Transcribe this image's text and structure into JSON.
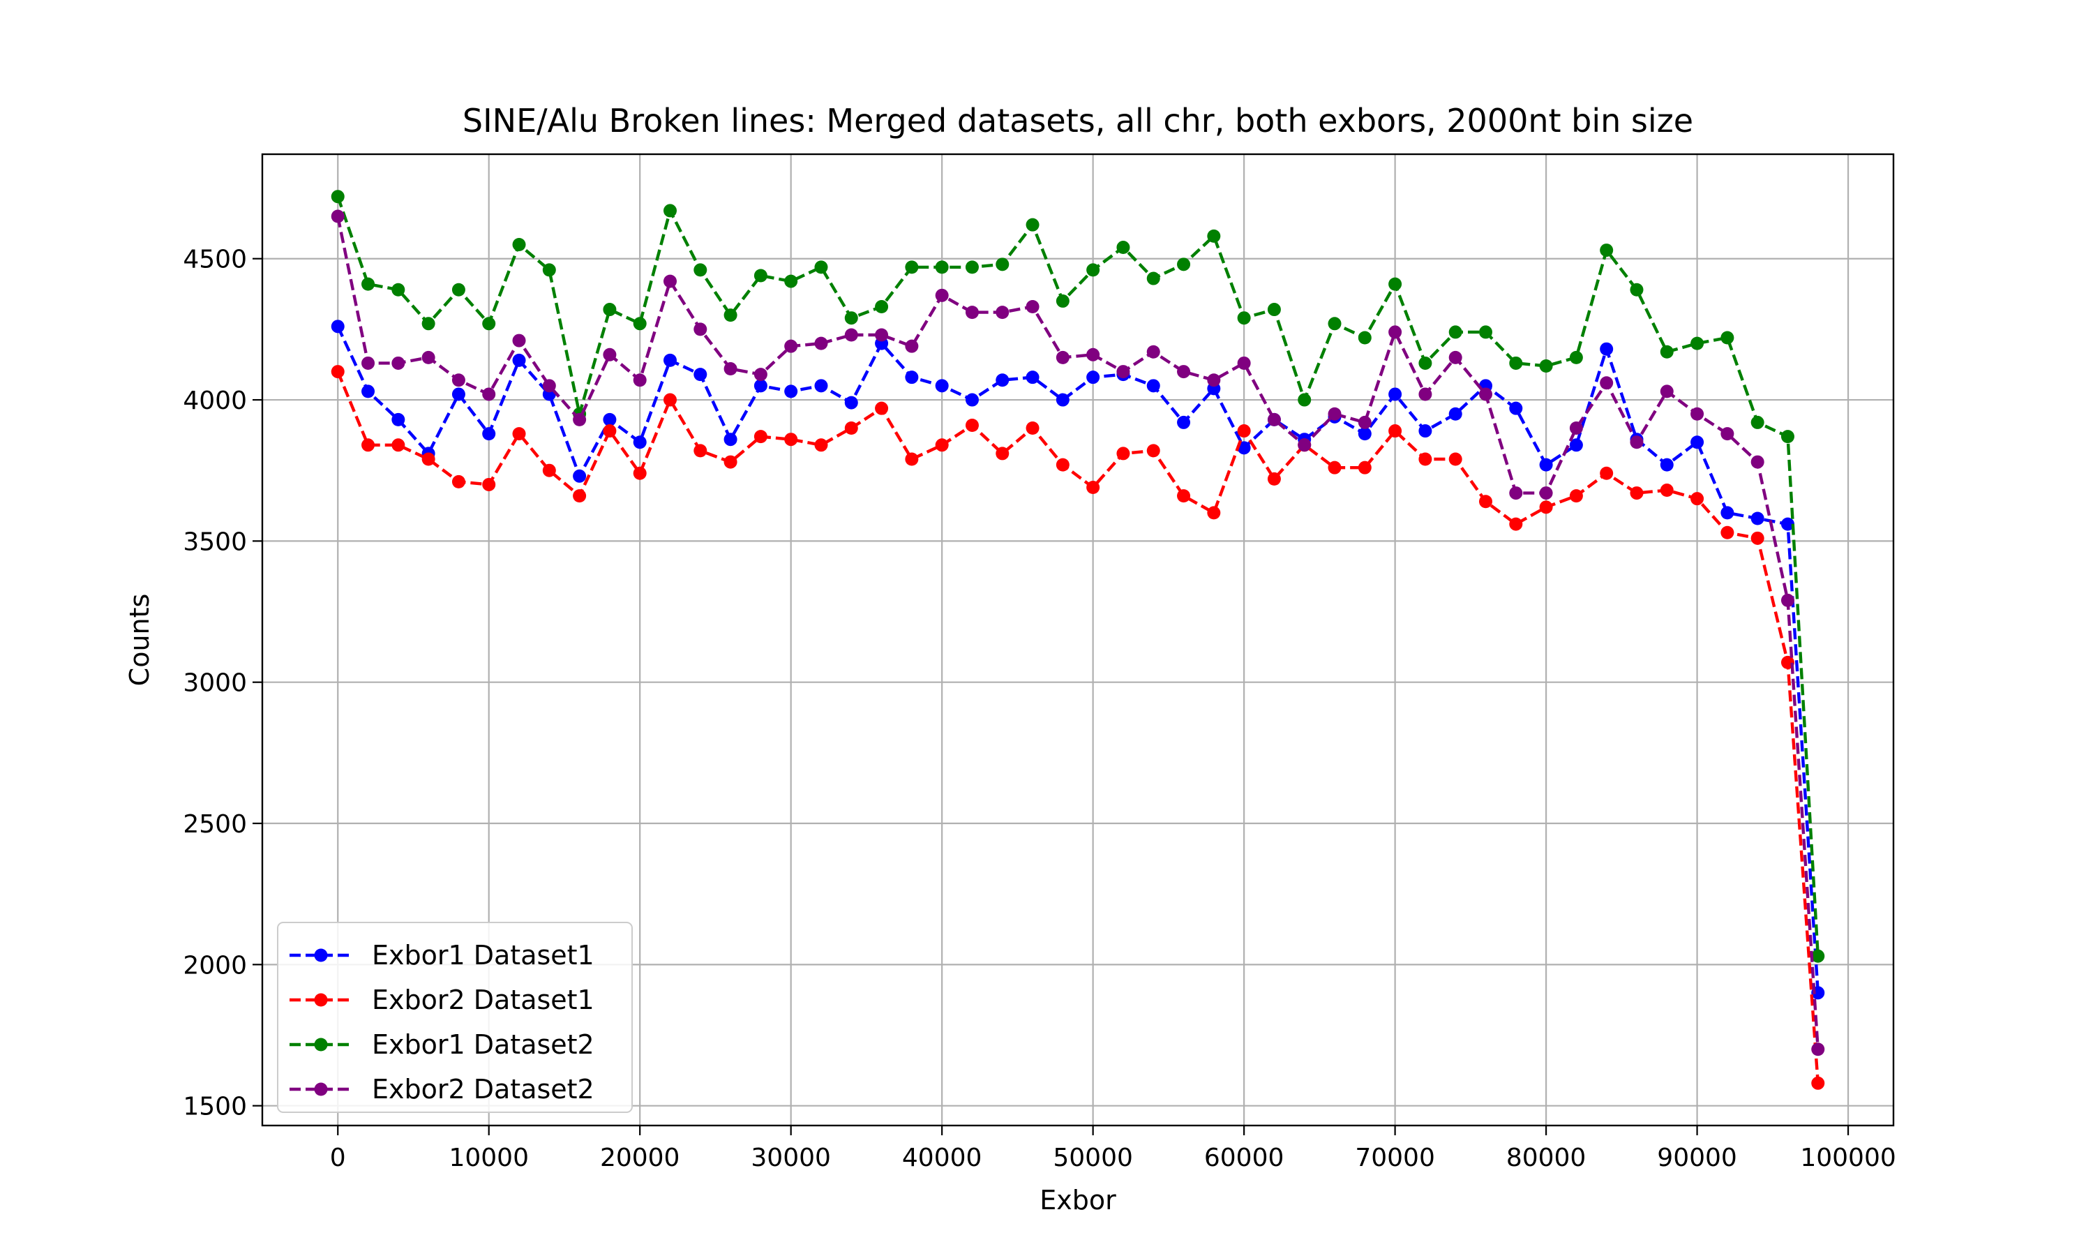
{
  "chart_data": {
    "type": "line",
    "title": "SINE/Alu Broken lines: Merged datasets, all chr, both exbors, 2000nt bin size",
    "xlabel": "Exbor",
    "ylabel": "Counts",
    "xlim": [
      -5000,
      103000
    ],
    "ylim": [
      1430,
      4870
    ],
    "x_ticks": [
      0,
      10000,
      20000,
      30000,
      40000,
      50000,
      60000,
      70000,
      80000,
      90000,
      100000
    ],
    "y_ticks": [
      1500,
      2000,
      2500,
      3000,
      3500,
      4000,
      4500
    ],
    "grid": true,
    "legend_position": "lower-left",
    "line_style": "dashed",
    "marker": "circle",
    "x": [
      0,
      2000,
      4000,
      6000,
      8000,
      10000,
      12000,
      14000,
      16000,
      18000,
      20000,
      22000,
      24000,
      26000,
      28000,
      30000,
      32000,
      34000,
      36000,
      38000,
      40000,
      42000,
      44000,
      46000,
      48000,
      50000,
      52000,
      54000,
      56000,
      58000,
      60000,
      62000,
      64000,
      66000,
      68000,
      70000,
      72000,
      74000,
      76000,
      78000,
      80000,
      82000,
      84000,
      86000,
      88000,
      90000,
      92000,
      94000,
      96000,
      98000
    ],
    "series": [
      {
        "name": "Exbor1 Dataset1",
        "color": "#0000ff",
        "values": [
          4260,
          4030,
          3930,
          3810,
          4020,
          3880,
          4140,
          4020,
          3730,
          3930,
          3850,
          4140,
          4090,
          3860,
          4050,
          4030,
          4050,
          3990,
          4200,
          4080,
          4050,
          4000,
          4070,
          4080,
          4000,
          4080,
          4090,
          4050,
          3920,
          4040,
          3830,
          3930,
          3860,
          3940,
          3880,
          4020,
          3890,
          3950,
          4050,
          3970,
          3770,
          3840,
          4180,
          3860,
          3770,
          3850,
          3600,
          3580,
          3560,
          1900
        ]
      },
      {
        "name": "Exbor2 Dataset1",
        "color": "#ff0000",
        "values": [
          4100,
          3840,
          3840,
          3790,
          3710,
          3700,
          3880,
          3750,
          3660,
          3890,
          3740,
          4000,
          3820,
          3780,
          3870,
          3860,
          3840,
          3900,
          3970,
          3790,
          3840,
          3910,
          3810,
          3900,
          3770,
          3690,
          3810,
          3820,
          3660,
          3600,
          3890,
          3720,
          3840,
          3760,
          3760,
          3890,
          3790,
          3790,
          3640,
          3560,
          3620,
          3660,
          3740,
          3670,
          3680,
          3650,
          3530,
          3510,
          3070,
          1580
        ]
      },
      {
        "name": "Exbor1 Dataset2",
        "color": "#008000",
        "values": [
          4720,
          4410,
          4390,
          4270,
          4390,
          4270,
          4550,
          4460,
          3950,
          4320,
          4270,
          4670,
          4460,
          4300,
          4440,
          4420,
          4470,
          4290,
          4330,
          4470,
          4470,
          4470,
          4480,
          4620,
          4350,
          4460,
          4540,
          4430,
          4480,
          4580,
          4290,
          4320,
          4000,
          4270,
          4220,
          4410,
          4130,
          4240,
          4240,
          4130,
          4120,
          4150,
          4530,
          4390,
          4170,
          4200,
          4220,
          3920,
          3870,
          2030
        ]
      },
      {
        "name": "Exbor2 Dataset2",
        "color": "#800080",
        "values": [
          4650,
          4130,
          4130,
          4150,
          4070,
          4020,
          4210,
          4050,
          3930,
          4160,
          4070,
          4420,
          4250,
          4110,
          4090,
          4190,
          4200,
          4230,
          4230,
          4190,
          4370,
          4310,
          4310,
          4330,
          4150,
          4160,
          4100,
          4170,
          4100,
          4070,
          4130,
          3930,
          3840,
          3950,
          3920,
          4240,
          4020,
          4150,
          4020,
          3670,
          3670,
          3900,
          4060,
          3850,
          4030,
          3950,
          3880,
          3780,
          3290,
          1700
        ]
      }
    ]
  }
}
